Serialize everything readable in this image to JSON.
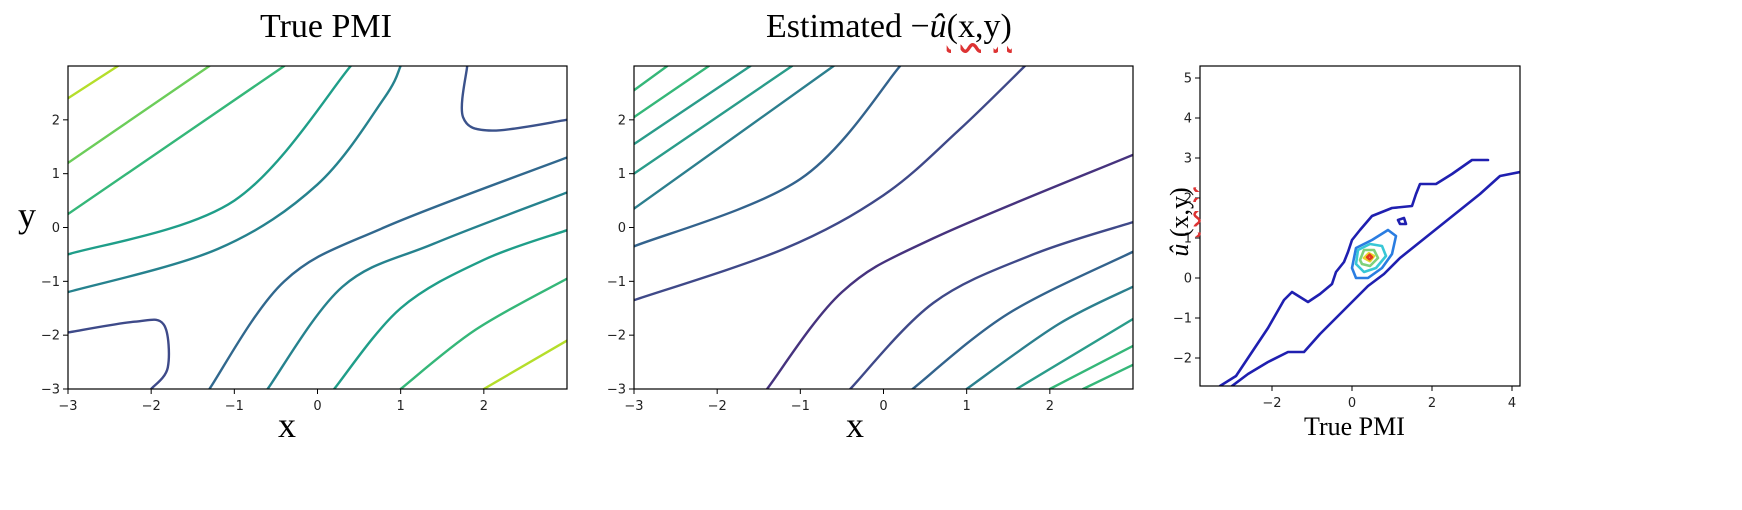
{
  "chart_data": [
    {
      "type": "contour",
      "title": "True PMI",
      "xlabel": "x",
      "ylabel": "y",
      "xlim": [
        -3,
        3
      ],
      "ylim": [
        -3,
        3
      ],
      "xticks": [
        -3,
        -2,
        -1,
        0,
        1,
        2
      ],
      "yticks": [
        -3,
        -2,
        -1,
        0,
        1,
        2
      ],
      "xtick_labels": [
        "−3",
        "−2",
        "−1",
        "0",
        "1",
        "2"
      ],
      "ytick_labels": [
        "−3",
        "−2",
        "−1",
        "0",
        "1",
        "2"
      ],
      "grid": false,
      "colormap": "viridis",
      "contour_lines": [
        {
          "color": "#b5de2b",
          "points": [
            [
              -3.0,
              2.4
            ],
            [
              -2.4,
              3.0
            ]
          ]
        },
        {
          "color": "#6ccd5a",
          "points": [
            [
              -3.0,
              1.2
            ],
            [
              -1.3,
              3.0
            ]
          ]
        },
        {
          "color": "#35b779",
          "points": [
            [
              -3.0,
              0.25
            ],
            [
              -0.4,
              3.0
            ]
          ]
        },
        {
          "color": "#1f9e89",
          "points": [
            [
              -3.0,
              -0.5
            ],
            [
              -1.0,
              0.5
            ],
            [
              0.4,
              3.0
            ]
          ]
        },
        {
          "color": "#26828e",
          "points": [
            [
              -3.0,
              -1.2
            ],
            [
              -1.2,
              -0.4
            ],
            [
              0.0,
              0.8
            ],
            [
              0.8,
              2.4
            ],
            [
              1.0,
              3.0
            ]
          ]
        },
        {
          "color": "#3b528b",
          "points": [
            [
              1.8,
              3.0
            ],
            [
              1.75,
              2.05
            ],
            [
              2.1,
              1.8
            ],
            [
              3.0,
              2.0
            ]
          ]
        },
        {
          "color": "#3e4a89",
          "points": [
            [
              -3.0,
              -1.95
            ],
            [
              -2.2,
              -1.75
            ],
            [
              -1.85,
              -1.8
            ],
            [
              -1.8,
              -2.6
            ],
            [
              -2.0,
              -3.0
            ]
          ]
        },
        {
          "color": "#31688e",
          "points": [
            [
              -1.3,
              -3.0
            ],
            [
              -0.4,
              -1.0
            ],
            [
              0.8,
              0.0
            ],
            [
              3.0,
              1.3
            ]
          ]
        },
        {
          "color": "#26828e",
          "points": [
            [
              -0.6,
              -3.0
            ],
            [
              0.3,
              -1.1
            ],
            [
              1.4,
              -0.3
            ],
            [
              3.0,
              0.65
            ]
          ]
        },
        {
          "color": "#1f9e89",
          "points": [
            [
              0.2,
              -3.0
            ],
            [
              1.0,
              -1.5
            ],
            [
              2.0,
              -0.6
            ],
            [
              3.0,
              -0.05
            ]
          ]
        },
        {
          "color": "#35b779",
          "points": [
            [
              1.0,
              -3.0
            ],
            [
              1.9,
              -1.9
            ],
            [
              3.0,
              -0.95
            ]
          ]
        },
        {
          "color": "#b5de2b",
          "points": [
            [
              2.0,
              -3.0
            ],
            [
              3.0,
              -2.1
            ]
          ]
        }
      ]
    },
    {
      "type": "contour",
      "title": "Estimated −",
      "title_uhat": "û",
      "title_suffix": "(x,y)",
      "xlabel": "x",
      "xlim": [
        -3,
        3
      ],
      "ylim": [
        -3,
        3
      ],
      "xticks": [
        -3,
        -2,
        -1,
        0,
        1,
        2
      ],
      "yticks": [
        -3,
        -2,
        -1,
        0,
        1,
        2
      ],
      "xtick_labels": [
        "−3",
        "−2",
        "−1",
        "0",
        "1",
        "2"
      ],
      "ytick_labels": [
        "−3",
        "−2",
        "−1",
        "0",
        "1",
        "2"
      ],
      "grid": false,
      "colormap": "viridis",
      "contour_lines": [
        {
          "color": "#35b779",
          "points": [
            [
              -3.0,
              2.55
            ],
            [
              -2.6,
              3.0
            ]
          ]
        },
        {
          "color": "#35b779",
          "points": [
            [
              -3.0,
              2.05
            ],
            [
              -2.1,
              3.0
            ]
          ]
        },
        {
          "color": "#2a9c8a",
          "points": [
            [
              -3.0,
              1.55
            ],
            [
              -1.6,
              3.0
            ]
          ]
        },
        {
          "color": "#2a9c8a",
          "points": [
            [
              -3.0,
              1.0
            ],
            [
              -1.1,
              3.0
            ]
          ]
        },
        {
          "color": "#2c7f8e",
          "points": [
            [
              -3.0,
              0.35
            ],
            [
              -0.6,
              3.0
            ]
          ]
        },
        {
          "color": "#33638d",
          "points": [
            [
              -3.0,
              -0.35
            ],
            [
              -1.0,
              0.9
            ],
            [
              0.2,
              3.0
            ]
          ]
        },
        {
          "color": "#3f4989",
          "points": [
            [
              -3.0,
              -1.35
            ],
            [
              -1.2,
              -0.4
            ],
            [
              0.0,
              0.6
            ],
            [
              0.9,
              1.8
            ],
            [
              1.7,
              3.0
            ]
          ]
        },
        {
          "color": "#46337e",
          "points": [
            [
              -1.4,
              -3.0
            ],
            [
              -0.5,
              -1.2
            ],
            [
              0.6,
              -0.2
            ],
            [
              3.0,
              1.35
            ]
          ]
        },
        {
          "color": "#3f4989",
          "points": [
            [
              -0.4,
              -3.0
            ],
            [
              0.6,
              -1.4
            ],
            [
              1.8,
              -0.5
            ],
            [
              3.0,
              0.1
            ]
          ]
        },
        {
          "color": "#33638d",
          "points": [
            [
              0.35,
              -3.0
            ],
            [
              1.5,
              -1.6
            ],
            [
              3.0,
              -0.45
            ]
          ]
        },
        {
          "color": "#2c7f8e",
          "points": [
            [
              1.0,
              -3.0
            ],
            [
              2.1,
              -1.8
            ],
            [
              3.0,
              -1.1
            ]
          ]
        },
        {
          "color": "#2a9c8a",
          "points": [
            [
              1.6,
              -3.0
            ],
            [
              3.0,
              -1.7
            ]
          ]
        },
        {
          "color": "#35b779",
          "points": [
            [
              2.0,
              -3.0
            ],
            [
              3.0,
              -2.2
            ]
          ]
        },
        {
          "color": "#35b779",
          "points": [
            [
              2.4,
              -3.0
            ],
            [
              3.0,
              -2.55
            ]
          ]
        }
      ]
    },
    {
      "type": "contour",
      "xlabel": "True PMI",
      "ylabel_uhat": "û",
      "ylabel_suffix": "(x,y)",
      "xlim": [
        -3.8,
        4.2
      ],
      "ylim": [
        -2.7,
        5.3
      ],
      "xticks": [
        -2,
        0,
        2,
        4
      ],
      "yticks": [
        -2,
        -1,
        0,
        1,
        2,
        3,
        4,
        5
      ],
      "xtick_labels": [
        "−2",
        "0",
        "2",
        "4"
      ],
      "ytick_labels": [
        "−2",
        "−1",
        "0",
        "1",
        "2",
        "3",
        "4",
        "5"
      ],
      "grid": false,
      "colormap": "jet",
      "contour_lines": [
        {
          "color": "#1f1fb0",
          "points": [
            [
              -3.3,
              -2.7
            ],
            [
              -2.9,
              -2.45
            ],
            [
              -2.7,
              -2.15
            ],
            [
              -2.5,
              -1.85
            ],
            [
              -2.3,
              -1.55
            ],
            [
              -2.1,
              -1.25
            ],
            [
              -1.9,
              -0.9
            ],
            [
              -1.7,
              -0.55
            ],
            [
              -1.5,
              -0.35
            ],
            [
              -1.1,
              -0.6
            ],
            [
              -0.8,
              -0.4
            ],
            [
              -0.5,
              -0.15
            ],
            [
              -0.4,
              0.15
            ],
            [
              -0.2,
              0.4
            ],
            [
              -0.1,
              0.65
            ],
            [
              0.0,
              0.95
            ],
            [
              0.2,
              1.2
            ],
            [
              0.5,
              1.55
            ],
            [
              1.0,
              1.75
            ],
            [
              1.5,
              1.8
            ],
            [
              1.6,
              2.1
            ],
            [
              1.7,
              2.35
            ],
            [
              2.1,
              2.35
            ],
            [
              2.5,
              2.6
            ],
            [
              3.0,
              2.95
            ],
            [
              3.4,
              2.95
            ]
          ]
        },
        {
          "color": "#1f1fb0",
          "points": [
            [
              -3.0,
              -2.7
            ],
            [
              -2.6,
              -2.4
            ],
            [
              -2.1,
              -2.1
            ],
            [
              -1.6,
              -1.85
            ],
            [
              -1.2,
              -1.85
            ],
            [
              -0.8,
              -1.4
            ],
            [
              -0.3,
              -0.9
            ],
            [
              0.1,
              -0.5
            ],
            [
              0.4,
              -0.2
            ],
            [
              0.8,
              0.1
            ],
            [
              1.2,
              0.5
            ],
            [
              1.7,
              0.9
            ],
            [
              2.2,
              1.3
            ],
            [
              2.7,
              1.7
            ],
            [
              3.2,
              2.1
            ],
            [
              3.7,
              2.55
            ],
            [
              4.2,
              2.65
            ]
          ]
        },
        {
          "color": "#1f1fb0",
          "points": [
            [
              1.15,
              1.45
            ],
            [
              1.3,
              1.5
            ],
            [
              1.35,
              1.35
            ],
            [
              1.2,
              1.35
            ],
            [
              1.15,
              1.45
            ]
          ]
        },
        {
          "color": "#2a7de1",
          "points": [
            [
              0.0,
              0.25
            ],
            [
              0.1,
              0.75
            ],
            [
              0.5,
              0.95
            ],
            [
              0.9,
              1.2
            ],
            [
              1.1,
              1.05
            ],
            [
              1.0,
              0.6
            ],
            [
              0.75,
              0.25
            ],
            [
              0.4,
              0.0
            ],
            [
              0.1,
              0.0
            ],
            [
              0.0,
              0.25
            ]
          ]
        },
        {
          "color": "#38c7d6",
          "points": [
            [
              0.1,
              0.35
            ],
            [
              0.15,
              0.7
            ],
            [
              0.45,
              0.85
            ],
            [
              0.75,
              0.8
            ],
            [
              0.85,
              0.55
            ],
            [
              0.6,
              0.25
            ],
            [
              0.3,
              0.15
            ],
            [
              0.1,
              0.35
            ]
          ]
        },
        {
          "color": "#7fd17a",
          "points": [
            [
              0.2,
              0.45
            ],
            [
              0.3,
              0.7
            ],
            [
              0.55,
              0.7
            ],
            [
              0.65,
              0.5
            ],
            [
              0.45,
              0.3
            ],
            [
              0.25,
              0.35
            ],
            [
              0.2,
              0.45
            ]
          ]
        },
        {
          "color": "#e8d42a",
          "points": [
            [
              0.3,
              0.5
            ],
            [
              0.42,
              0.62
            ],
            [
              0.55,
              0.55
            ],
            [
              0.45,
              0.42
            ],
            [
              0.3,
              0.5
            ]
          ]
        },
        {
          "color": "#e53b1e",
          "points": [
            [
              0.38,
              0.52
            ],
            [
              0.44,
              0.58
            ],
            [
              0.5,
              0.52
            ],
            [
              0.44,
              0.47
            ],
            [
              0.38,
              0.52
            ]
          ]
        }
      ]
    }
  ]
}
